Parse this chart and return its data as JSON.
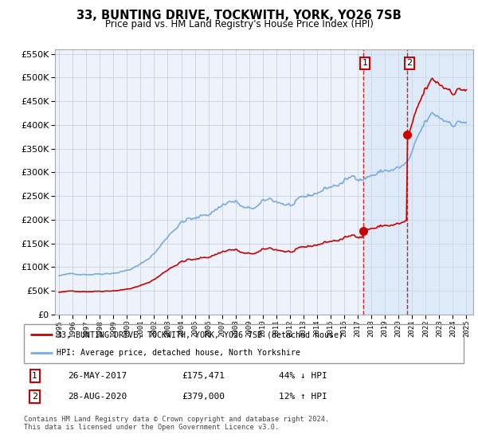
{
  "title": "33, BUNTING DRIVE, TOCKWITH, YORK, YO26 7SB",
  "subtitle": "Price paid vs. HM Land Registry’s House Price Index (HPI)",
  "subtitle2": "Price paid vs. HM Land Registry's House Price Index (HPI)",
  "legend_line1": "33, BUNTING DRIVE, TOCKWITH, YORK, YO26 7SB (detached house)",
  "legend_line2": "HPI: Average price, detached house, North Yorkshire",
  "footer": "Contains HM Land Registry data © Crown copyright and database right 2024.\nThis data is licensed under the Open Government Licence v3.0.",
  "transaction1_date": "26-MAY-2017",
  "transaction1_price": "£175,471",
  "transaction1_hpi": "44% ↓ HPI",
  "transaction1_year": 2017.38,
  "transaction1_price_val": 175471,
  "transaction2_date": "28-AUG-2020",
  "transaction2_price": "£379,000",
  "transaction2_hpi": "12% ↑ HPI",
  "transaction2_year": 2020.65,
  "transaction2_price_val": 379000,
  "red_color": "#cc0000",
  "blue_color": "#7aabdc",
  "background_color": "#ffffff",
  "grid_color": "#cccccc",
  "shade_color": "#ddeeff",
  "ylim_min": 0,
  "ylim_max": 560000
}
